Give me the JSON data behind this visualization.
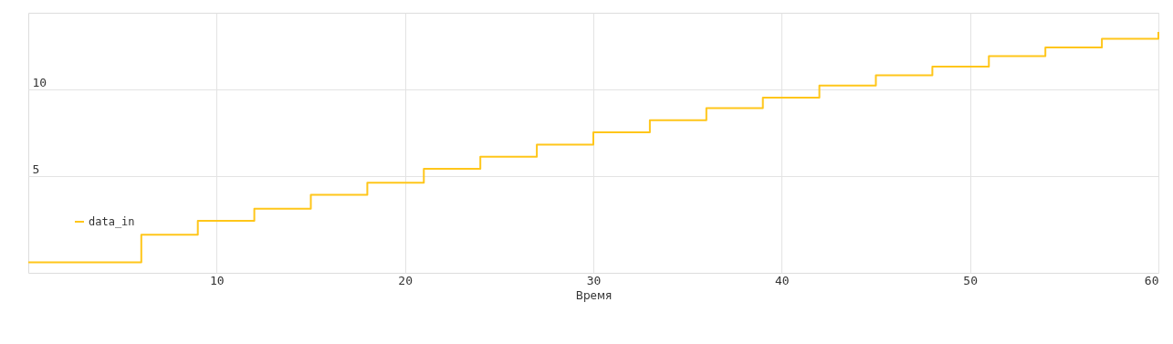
{
  "chart_data": {
    "type": "step",
    "xlabel": "Время",
    "x": [
      0,
      6,
      9,
      12,
      15,
      18,
      21,
      24,
      27,
      30,
      33,
      36,
      39,
      42,
      45,
      48,
      51,
      54,
      57,
      60
    ],
    "series": [
      {
        "name": "data_in",
        "color": "#ffc61a",
        "values": [
          0,
          1.6,
          2.4,
          3.1,
          3.9,
          4.6,
          5.4,
          6.1,
          6.8,
          7.5,
          8.2,
          8.9,
          9.5,
          10.2,
          10.8,
          11.3,
          11.9,
          12.4,
          12.9,
          13.3
        ]
      }
    ],
    "xlim": [
      0,
      60
    ],
    "xticks": [
      10,
      20,
      30,
      40,
      50,
      60
    ],
    "ylim": [
      -0.6,
      14.4
    ],
    "yticks": [
      5,
      10
    ],
    "grid": true,
    "legend": "bottom left"
  }
}
